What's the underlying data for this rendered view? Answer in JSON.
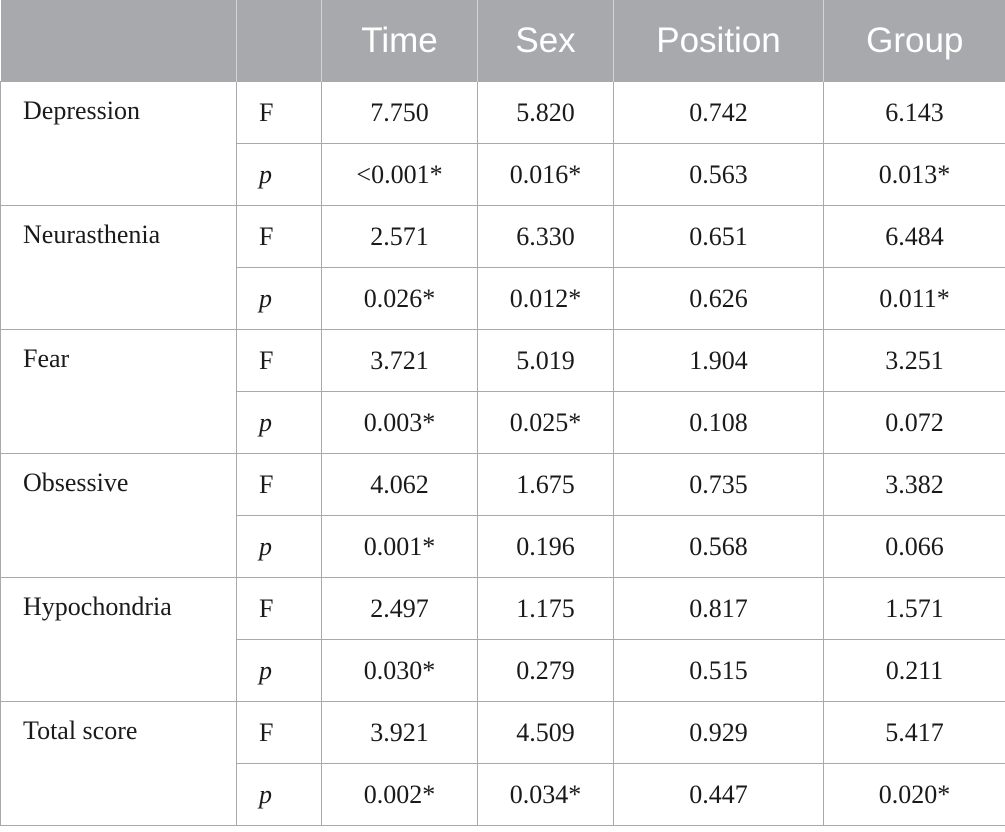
{
  "header": {
    "blank1": "",
    "blank2": "",
    "time": "Time",
    "sex": "Sex",
    "position": "Position",
    "group": "Group"
  },
  "rows": [
    {
      "measure": "Depression",
      "F": {
        "label": "F",
        "time": "7.750",
        "sex": "5.820",
        "position": "0.742",
        "group": "6.143"
      },
      "p": {
        "label": "p",
        "time": "<0.001*",
        "sex": "0.016*",
        "position": "0.563",
        "group": "0.013*"
      }
    },
    {
      "measure": "Neurasthenia",
      "F": {
        "label": "F",
        "time": "2.571",
        "sex": "6.330",
        "position": "0.651",
        "group": "6.484"
      },
      "p": {
        "label": "p",
        "time": "0.026*",
        "sex": "0.012*",
        "position": "0.626",
        "group": "0.011*"
      }
    },
    {
      "measure": "Fear",
      "F": {
        "label": "F",
        "time": "3.721",
        "sex": "5.019",
        "position": "1.904",
        "group": "3.251"
      },
      "p": {
        "label": "p",
        "time": "0.003*",
        "sex": "0.025*",
        "position": "0.108",
        "group": "0.072"
      }
    },
    {
      "measure": "Obsessive",
      "F": {
        "label": "F",
        "time": "4.062",
        "sex": "1.675",
        "position": "0.735",
        "group": "3.382"
      },
      "p": {
        "label": "p",
        "time": "0.001*",
        "sex": "0.196",
        "position": "0.568",
        "group": "0.066"
      }
    },
    {
      "measure": "Hypochondria",
      "F": {
        "label": "F",
        "time": "2.497",
        "sex": "1.175",
        "position": "0.817",
        "group": "1.571"
      },
      "p": {
        "label": "p",
        "time": "0.030*",
        "sex": "0.279",
        "position": "0.515",
        "group": "0.211"
      }
    },
    {
      "measure": "Total score",
      "F": {
        "label": "F",
        "time": "3.921",
        "sex": "4.509",
        "position": "0.929",
        "group": "5.417"
      },
      "p": {
        "label": "p",
        "time": "0.002*",
        "sex": "0.034*",
        "position": "0.447",
        "group": "0.020*"
      }
    }
  ],
  "colors": {
    "header_bg": "#a7a9ac",
    "header_text": "#ffffff",
    "grid": "#a7a9ac",
    "body_text": "#1a1a1a"
  }
}
